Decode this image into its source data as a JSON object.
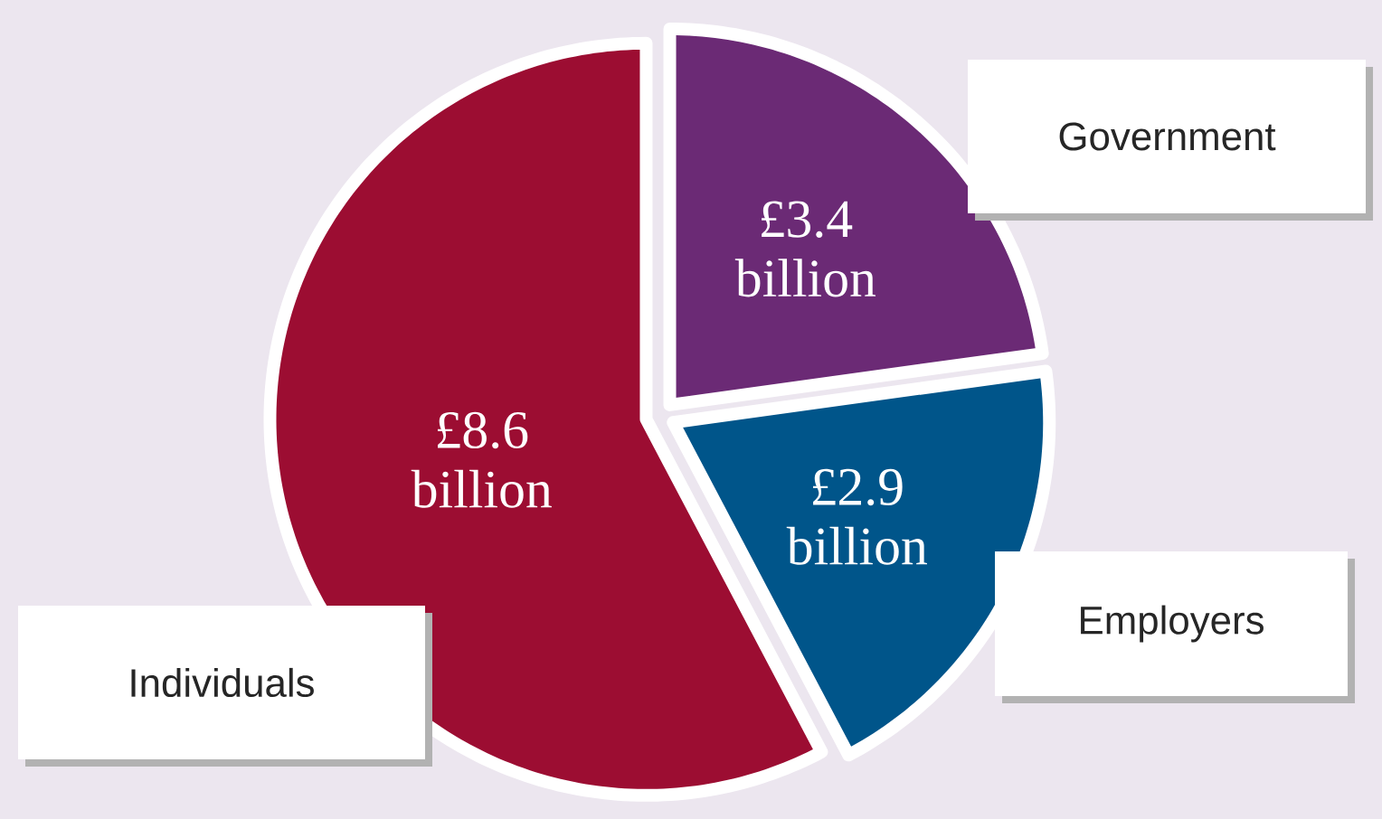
{
  "chart_data": {
    "type": "pie",
    "categories": [
      "Government",
      "Employers",
      "Individuals"
    ],
    "values": [
      3.4,
      2.9,
      8.6
    ],
    "colors": [
      "#6b2a75",
      "#00558a",
      "#9c0d32"
    ],
    "value_labels": [
      "£3.4 billion",
      "£2.9 billion",
      "£8.6 billion"
    ]
  }
}
